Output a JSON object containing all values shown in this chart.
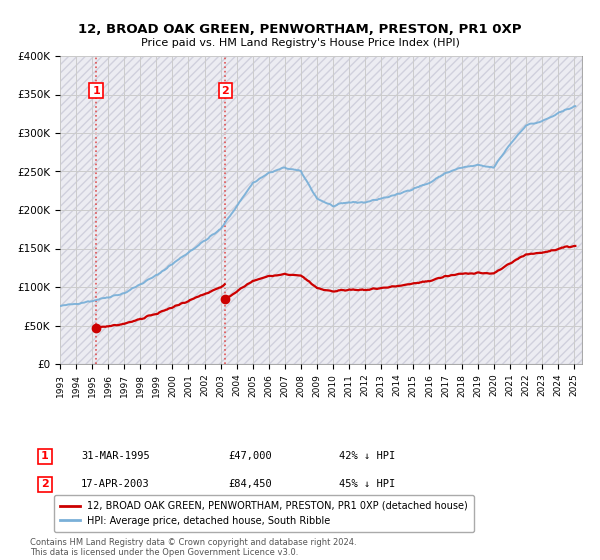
{
  "title": "12, BROAD OAK GREEN, PENWORTHAM, PRESTON, PR1 0XP",
  "subtitle": "Price paid vs. HM Land Registry's House Price Index (HPI)",
  "ylim": [
    0,
    400000
  ],
  "yticks": [
    0,
    50000,
    100000,
    150000,
    200000,
    250000,
    300000,
    350000,
    400000
  ],
  "hpi_color": "#7ab0d8",
  "price_color": "#cc0000",
  "t1": 1995.25,
  "t2": 2003.29,
  "price1": 47000,
  "price2": 84450,
  "legend_line1": "12, BROAD OAK GREEN, PENWORTHAM, PRESTON, PR1 0XP (detached house)",
  "legend_line2": "HPI: Average price, detached house, South Ribble",
  "annotation1_num": "1",
  "annotation1_date": "31-MAR-1995",
  "annotation1_price": "£47,000",
  "annotation1_hpi": "42% ↓ HPI",
  "annotation2_num": "2",
  "annotation2_date": "17-APR-2003",
  "annotation2_price": "£84,450",
  "annotation2_hpi": "45% ↓ HPI",
  "footnote": "Contains HM Land Registry data © Crown copyright and database right 2024.\nThis data is licensed under the Open Government Licence v3.0.",
  "grid_color": "#cccccc",
  "hatch_color": "#e8e8f0"
}
